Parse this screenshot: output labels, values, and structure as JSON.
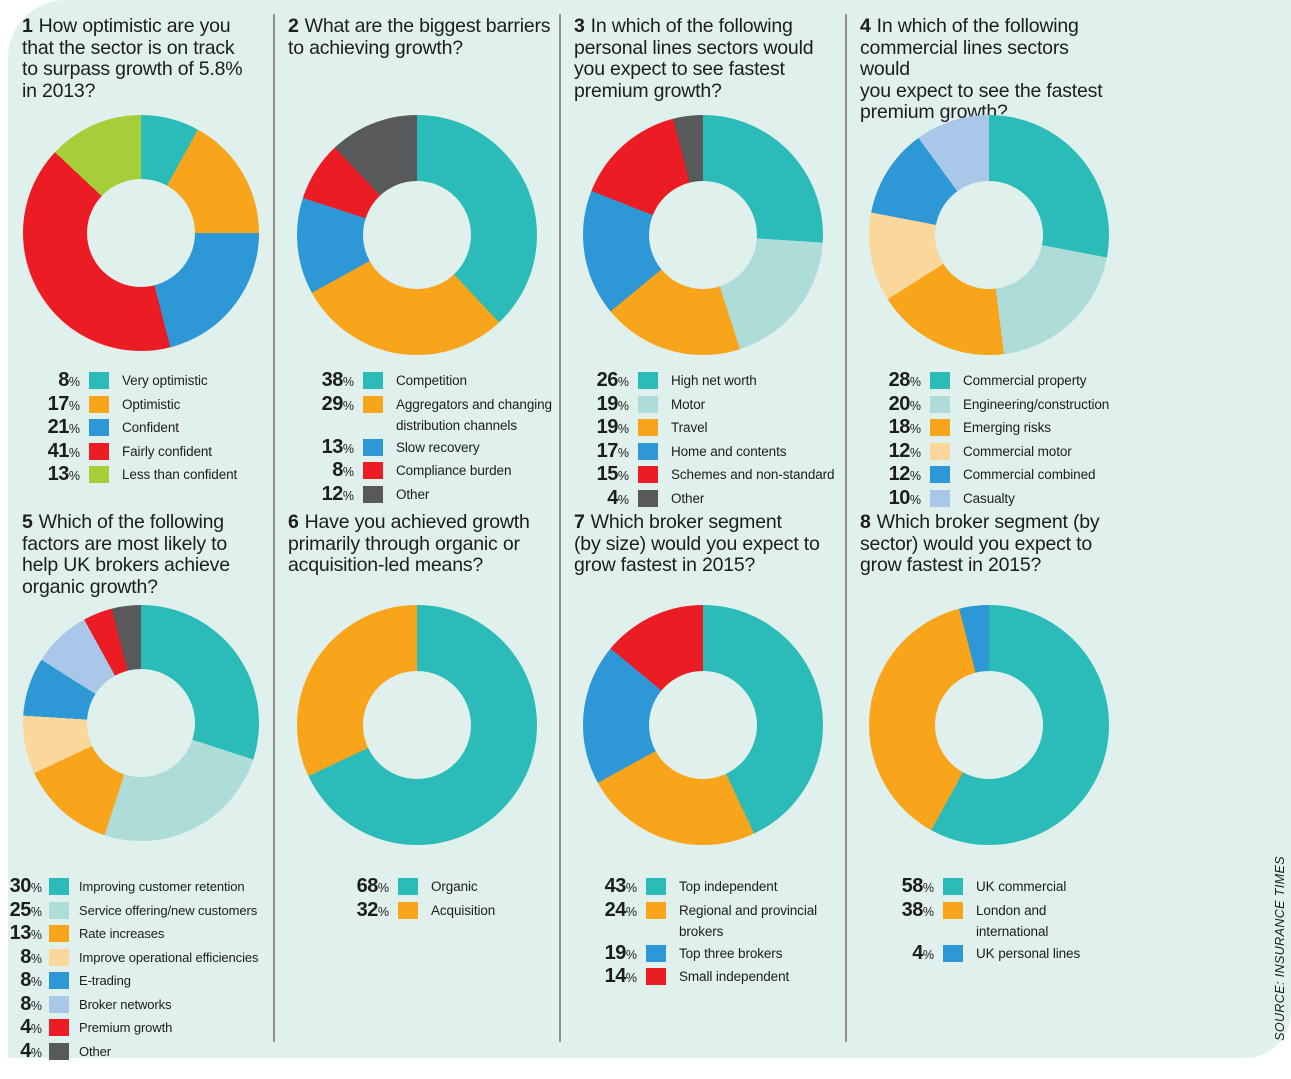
{
  "source_note": "SOURCE: INSURANCE TIMES",
  "colors": {
    "panel_background": "#dff0ed",
    "teal": "#2bbcb9",
    "teal_light": "#aedcd8",
    "orange": "#f8a51b",
    "orange_light": "#fcd79b",
    "blue": "#2e97d6",
    "blue_light": "#a9c7e9",
    "red": "#ec1c24",
    "green": "#a5ce39",
    "gray": "#58595b"
  },
  "chart_data": [
    {
      "type": "donut",
      "number": "1",
      "question": "How optimistic are you\nthat the sector is on track\nto surpass growth of 5.8%\nin 2013?",
      "segments": [
        {
          "label": "Very optimistic",
          "value": 8,
          "color": "#2bbcb9"
        },
        {
          "label": "Optimistic",
          "value": 17,
          "color": "#f8a51b"
        },
        {
          "label": "Confident",
          "value": 21,
          "color": "#2e97d6"
        },
        {
          "label": "Fairly confident",
          "value": 41,
          "color": "#ec1c24"
        },
        {
          "label": "Less than confident",
          "value": 13,
          "color": "#a5ce39"
        }
      ]
    },
    {
      "type": "donut",
      "number": "2",
      "question": "What are the biggest barriers\nto achieving growth?",
      "segments": [
        {
          "label": "Competition",
          "value": 38,
          "color": "#2bbcb9"
        },
        {
          "label": "Aggregators and changing\ndistribution channels",
          "value": 29,
          "color": "#f8a51b"
        },
        {
          "label": "Slow recovery",
          "value": 13,
          "color": "#2e97d6"
        },
        {
          "label": "Compliance burden",
          "value": 8,
          "color": "#ec1c24"
        },
        {
          "label": "Other",
          "value": 12,
          "color": "#58595b"
        }
      ]
    },
    {
      "type": "donut",
      "number": "3",
      "question": "In which of the following\npersonal lines sectors would\nyou expect to see fastest\npremium growth?",
      "segments": [
        {
          "label": "High net worth",
          "value": 26,
          "color": "#2bbcb9"
        },
        {
          "label": "Motor",
          "value": 19,
          "color": "#aedcd8"
        },
        {
          "label": "Travel",
          "value": 19,
          "color": "#f8a51b"
        },
        {
          "label": "Home and contents",
          "value": 17,
          "color": "#2e97d6"
        },
        {
          "label": "Schemes and non-standard",
          "value": 15,
          "color": "#ec1c24"
        },
        {
          "label": "Other",
          "value": 4,
          "color": "#58595b"
        }
      ]
    },
    {
      "type": "donut",
      "number": "4",
      "question": "In which of the following\ncommercial lines sectors would\nyou expect to see the fastest\npremium growth?",
      "segments": [
        {
          "label": "Commercial property",
          "value": 28,
          "color": "#2bbcb9"
        },
        {
          "label": "Engineering/construction",
          "value": 20,
          "color": "#aedcd8"
        },
        {
          "label": "Emerging risks",
          "value": 18,
          "color": "#f8a51b"
        },
        {
          "label": "Commercial motor",
          "value": 12,
          "color": "#fcd79b"
        },
        {
          "label": "Commercial combined",
          "value": 12,
          "color": "#2e97d6"
        },
        {
          "label": "Casualty",
          "value": 10,
          "color": "#a9c7e9"
        }
      ]
    },
    {
      "type": "donut",
      "number": "5",
      "question": "Which of the following\nfactors are most likely to\nhelp UK brokers achieve\norganic growth?",
      "segments": [
        {
          "label": "Improving customer retention",
          "value": 30,
          "color": "#2bbcb9"
        },
        {
          "label": "Service offering/new customers",
          "value": 25,
          "color": "#aedcd8"
        },
        {
          "label": "Rate increases",
          "value": 13,
          "color": "#f8a51b"
        },
        {
          "label": "Improve operational efficiencies",
          "value": 8,
          "color": "#fcd79b"
        },
        {
          "label": "E-trading",
          "value": 8,
          "color": "#2e97d6"
        },
        {
          "label": "Broker networks",
          "value": 8,
          "color": "#a9c7e9"
        },
        {
          "label": "Premium growth",
          "value": 4,
          "color": "#ec1c24"
        },
        {
          "label": "Other",
          "value": 4,
          "color": "#58595b"
        }
      ]
    },
    {
      "type": "donut",
      "number": "6",
      "question": "Have you achieved growth\nprimarily through organic or\nacquisition-led means?",
      "segments": [
        {
          "label": "Organic",
          "value": 68,
          "color": "#2bbcb9"
        },
        {
          "label": "Acquisition",
          "value": 32,
          "color": "#f8a51b"
        }
      ]
    },
    {
      "type": "donut",
      "number": "7",
      "question": "Which broker segment\n(by size) would you expect to\ngrow fastest in 2015?",
      "segments": [
        {
          "label": "Top independent",
          "value": 43,
          "color": "#2bbcb9"
        },
        {
          "label": "Regional and provincial\nbrokers",
          "value": 24,
          "color": "#f8a51b"
        },
        {
          "label": "Top three brokers",
          "value": 19,
          "color": "#2e97d6"
        },
        {
          "label": "Small independent",
          "value": 14,
          "color": "#ec1c24"
        }
      ]
    },
    {
      "type": "donut",
      "number": "8",
      "question": "Which broker segment (by\nsector) would you expect to\ngrow fastest in 2015?",
      "segments": [
        {
          "label": "UK commercial",
          "value": 58,
          "color": "#2bbcb9"
        },
        {
          "label": "London and\ninternational",
          "value": 38,
          "color": "#f8a51b"
        },
        {
          "label": "UK personal lines",
          "value": 4,
          "color": "#2e97d6"
        }
      ]
    }
  ]
}
